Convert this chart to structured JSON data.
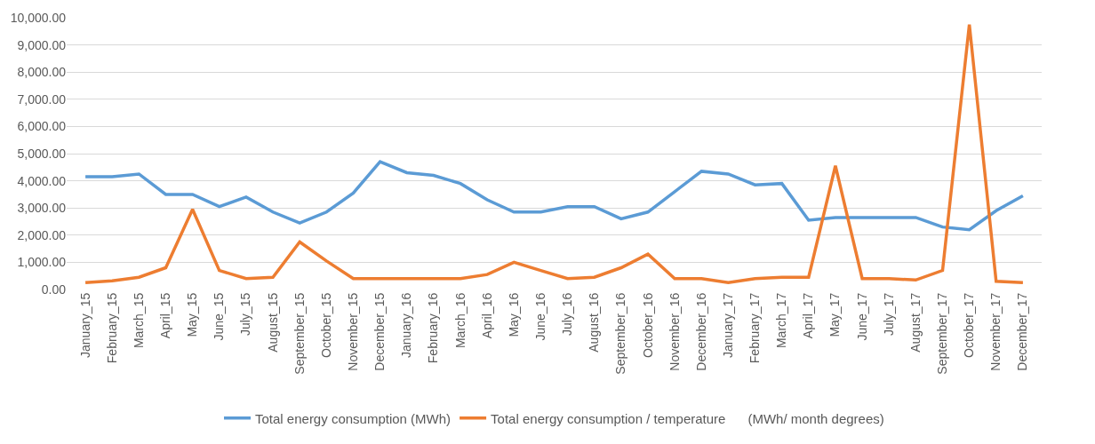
{
  "chart_data": {
    "type": "line",
    "categories": [
      "January_15",
      "February_15",
      "March_15",
      "April_15",
      "May_15",
      "June_15",
      "July_15",
      "August_15",
      "September_15",
      "October_15",
      "November_15",
      "December_15",
      "January_16",
      "February_16",
      "March_16",
      "April_16",
      "May_16",
      "June_16",
      "July_16",
      "August_16",
      "September_16",
      "October_16",
      "November_16",
      "December_16",
      "January_17",
      "February_17",
      "March_17",
      "April_17",
      "May_17",
      "June_17",
      "July_17",
      "August_17",
      "September_17",
      "October_17",
      "November_17",
      "December_17"
    ],
    "series": [
      {
        "name": "Total energy consumption (MWh)",
        "color": "#5b9bd5",
        "values": [
          4150,
          4150,
          4250,
          3500,
          3500,
          3050,
          3400,
          2850,
          2450,
          2850,
          3550,
          4700,
          4300,
          4200,
          3900,
          3300,
          2850,
          2850,
          3050,
          3050,
          2600,
          2850,
          3600,
          4350,
          4250,
          3850,
          3900,
          2550,
          2650,
          2650,
          2650,
          2650,
          2300,
          2200,
          2900,
          3450
        ]
      },
      {
        "name": "Total energy consumption / temperature      (MWh/ month degrees)",
        "color": "#ed7d31",
        "values": [
          250,
          320,
          450,
          800,
          2950,
          700,
          400,
          450,
          1750,
          1050,
          400,
          400,
          400,
          400,
          400,
          550,
          1000,
          700,
          400,
          450,
          800,
          1300,
          400,
          400,
          250,
          400,
          450,
          450,
          4550,
          400,
          400,
          350,
          700,
          9750,
          300,
          250
        ]
      }
    ],
    "ylim": [
      0,
      10000
    ],
    "yticks": [
      {
        "value": 0,
        "label": "0.00"
      },
      {
        "value": 1000,
        "label": "1,000.00"
      },
      {
        "value": 2000,
        "label": "2,000.00"
      },
      {
        "value": 3000,
        "label": "3,000.00"
      },
      {
        "value": 4000,
        "label": "4,000.00"
      },
      {
        "value": 5000,
        "label": "5,000.00"
      },
      {
        "value": 6000,
        "label": "6,000.00"
      },
      {
        "value": 7000,
        "label": "7,000.00"
      },
      {
        "value": 8000,
        "label": "8,000.00"
      },
      {
        "value": 9000,
        "label": "9,000.00"
      },
      {
        "value": 10000,
        "label": "10,000.00"
      }
    ],
    "grid": "y",
    "legend": "bottom",
    "marker": "none",
    "line_style": "solid"
  }
}
